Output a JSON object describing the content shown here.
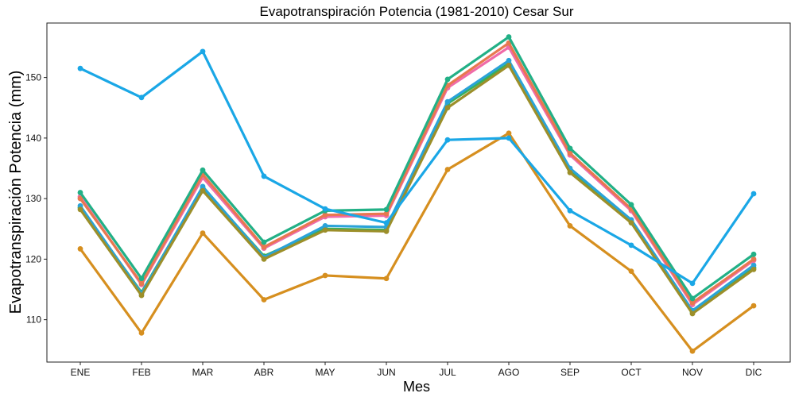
{
  "chart_data": {
    "type": "line",
    "title": "Evapotranspiración Potencia (1981-2010)  Cesar Sur",
    "xlabel": "Mes",
    "ylabel": "Evapotranspiración Potencia  (mm)",
    "categories": [
      "ENE",
      "FEB",
      "MAR",
      "ABR",
      "MAY",
      "JUN",
      "JUL",
      "AGO",
      "SEP",
      "OCT",
      "NOV",
      "DIC"
    ],
    "ylim": [
      103,
      159
    ],
    "yticks": [
      110,
      120,
      130,
      140,
      150
    ],
    "grid": false,
    "legend": "none",
    "series": [
      {
        "color": "#1aa7e6",
        "values": [
          151.5,
          146.7,
          154.3,
          133.7,
          128.3,
          126.0,
          139.7,
          140.0,
          128.0,
          122.3,
          116.0,
          130.8
        ]
      },
      {
        "color": "#d68f1f",
        "values": [
          121.7,
          107.8,
          124.3,
          113.3,
          117.3,
          116.8,
          134.8,
          140.8,
          125.5,
          118.0,
          104.8,
          112.3
        ]
      },
      {
        "color": "#22b086",
        "values": [
          131.0,
          116.8,
          134.7,
          122.8,
          128.0,
          128.2,
          149.7,
          156.7,
          138.3,
          129.0,
          113.5,
          120.8
        ]
      },
      {
        "color": "#e8784f",
        "values": [
          130.0,
          116.0,
          134.0,
          122.0,
          127.3,
          127.5,
          148.7,
          155.7,
          137.5,
          128.3,
          112.8,
          120.0
        ]
      },
      {
        "color": "#f06ba8",
        "values": [
          130.3,
          115.8,
          133.5,
          121.8,
          127.0,
          127.2,
          148.3,
          155.0,
          137.2,
          128.0,
          112.5,
          119.8
        ]
      },
      {
        "color": "#9c8f2a",
        "values": [
          128.2,
          114.0,
          131.3,
          120.0,
          124.8,
          124.6,
          145.0,
          152.0,
          134.3,
          126.0,
          111.0,
          118.3
        ]
      },
      {
        "color": "#2aa3d8",
        "values": [
          128.8,
          114.3,
          132.0,
          120.3,
          125.5,
          125.3,
          146.0,
          152.8,
          135.0,
          126.5,
          111.5,
          119.0
        ]
      },
      {
        "color": "#38b05a",
        "values": [
          128.5,
          114.5,
          131.8,
          120.5,
          125.0,
          124.8,
          145.7,
          152.3,
          134.8,
          126.3,
          111.2,
          118.6
        ]
      }
    ]
  }
}
